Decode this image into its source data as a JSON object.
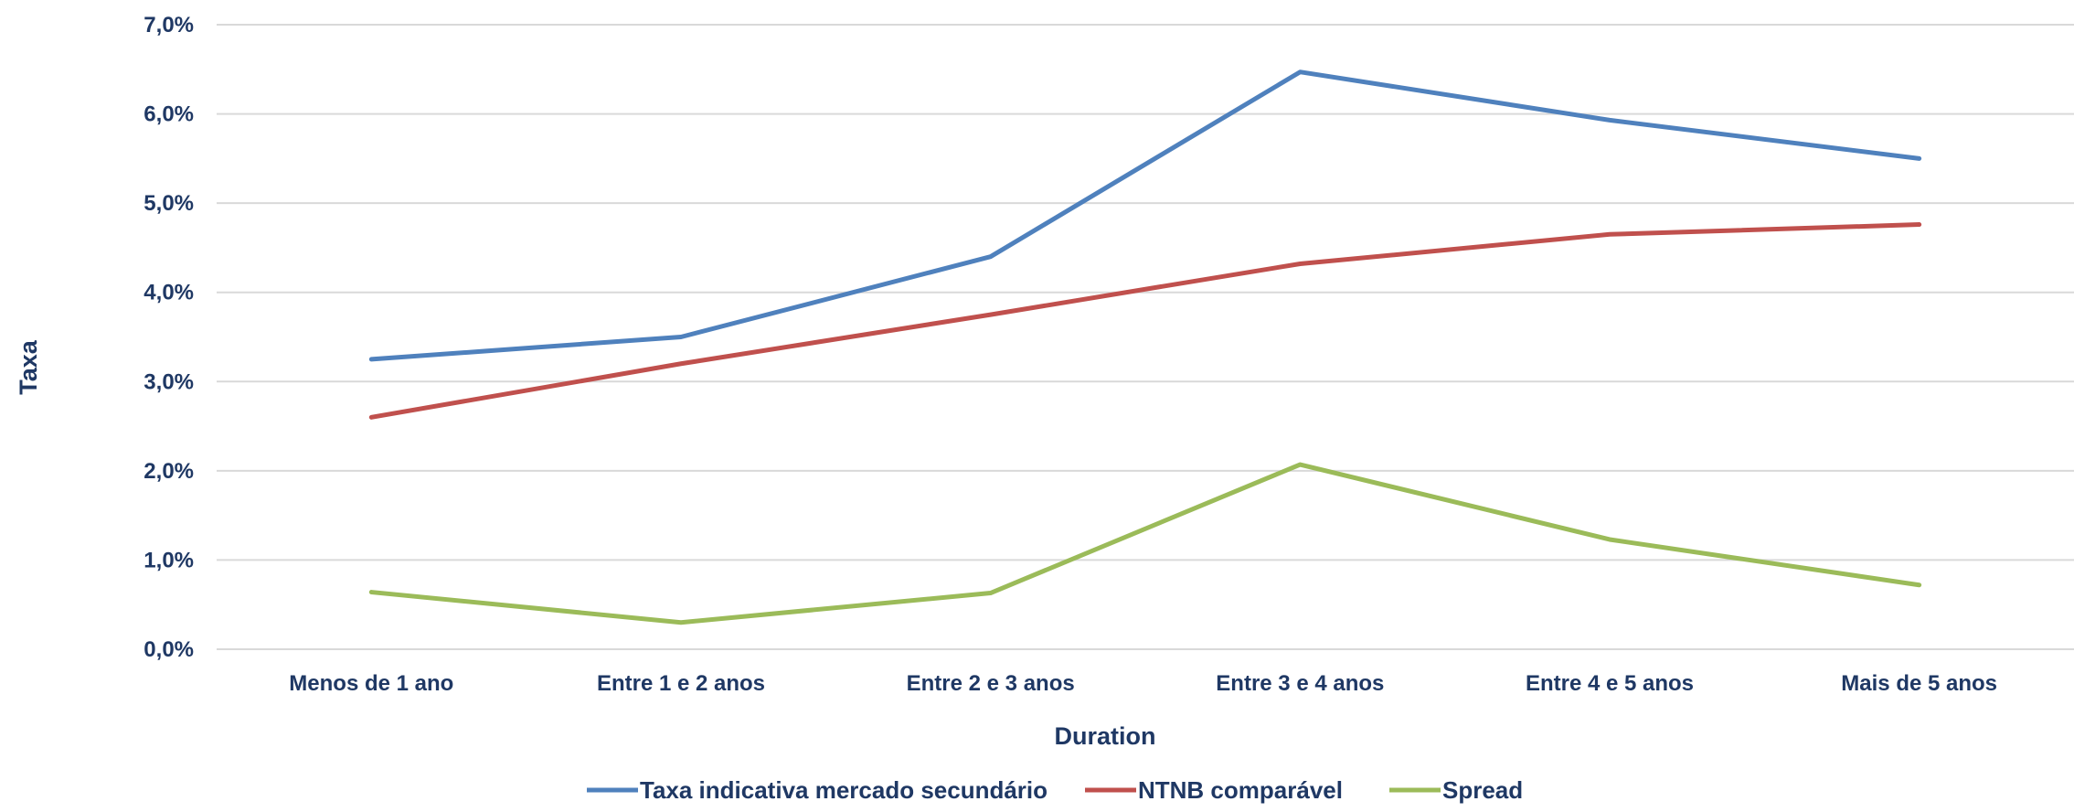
{
  "chart_data": {
    "type": "line",
    "categories": [
      "Menos de 1 ano",
      "Entre 1 e 2 anos",
      "Entre 2 e 3 anos",
      "Entre 3 e 4 anos",
      "Entre 4 e 5 anos",
      "Mais de 5 anos"
    ],
    "series": [
      {
        "name": "Taxa indicativa mercado secundário",
        "color": "#4f81bd",
        "values": [
          3.25,
          3.5,
          4.4,
          6.47,
          5.93,
          5.5
        ]
      },
      {
        "name": "NTNB comparável",
        "color": "#c0504d",
        "values": [
          2.6,
          3.2,
          3.75,
          4.32,
          4.65,
          4.76
        ]
      },
      {
        "name": "Spread",
        "color": "#9bbb59",
        "values": [
          0.64,
          0.3,
          0.63,
          2.07,
          1.23,
          0.72
        ]
      }
    ],
    "title": "",
    "xlabel": "Duration",
    "ylabel": "Taxa",
    "ylim": [
      0,
      7
    ],
    "y_ticks": [
      0,
      1,
      2,
      3,
      4,
      5,
      6,
      7
    ],
    "y_tick_labels": [
      "0,0%",
      "1,0%",
      "2,0%",
      "3,0%",
      "4,0%",
      "5,0%",
      "6,0%",
      "7,0%"
    ],
    "grid": true,
    "legend_position": "bottom"
  }
}
